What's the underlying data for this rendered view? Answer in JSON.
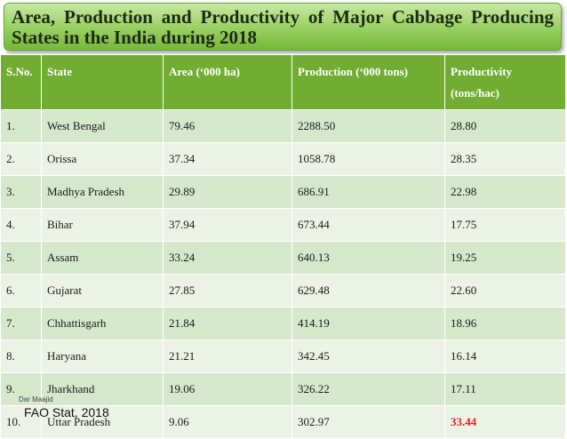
{
  "title": "Area, Production and Productivity of Major Cabbage Producing States in the India during 2018",
  "table": {
    "headers": {
      "sno": "S.No.",
      "state": "State",
      "area": "Area (‘000 ha)",
      "production": "Production (‘000 tons)",
      "productivity_line1": "Productivity",
      "productivity_line2": "(tons/hac)"
    },
    "rows": [
      {
        "sno": "1.",
        "state": "West Bengal",
        "area": "79.46",
        "production": "2288.50",
        "productivity": "28.80"
      },
      {
        "sno": "2.",
        "state": "Orissa",
        "area": "37.34",
        "production": "1058.78",
        "productivity": "28.35"
      },
      {
        "sno": "3.",
        "state": "Madhya Pradesh",
        "area": "29.89",
        "production": "686.91",
        "productivity": "22.98"
      },
      {
        "sno": "4.",
        "state": "Bihar",
        "area": "37.94",
        "production": "673.44",
        "productivity": "17.75"
      },
      {
        "sno": "5.",
        "state": "Assam",
        "area": "33.24",
        "production": "640.13",
        "productivity": "19.25"
      },
      {
        "sno": "6.",
        "state": "Gujarat",
        "area": "27.85",
        "production": "629.48",
        "productivity": "22.60"
      },
      {
        "sno": "7.",
        "state": "Chhattisgarh",
        "area": "21.84",
        "production": "414.19",
        "productivity": "18.96"
      },
      {
        "sno": "8.",
        "state": "Haryana",
        "area": "21.21",
        "production": "342.45",
        "productivity": "16.14"
      },
      {
        "sno": "9.",
        "state": "Jharkhand",
        "area": "19.06",
        "production": "326.22",
        "productivity": "17.11"
      },
      {
        "sno": "10.",
        "state": "Uttar Pradesh",
        "area": "9.06",
        "production": "302.97",
        "productivity": "33.44"
      }
    ]
  },
  "author": "Dar Maajid",
  "source": "FAO Stat, 2018",
  "colors": {
    "header_green": "#70ad32",
    "row_dark": "#d6e8cc",
    "row_light": "#ebf3e6",
    "highlight_red": "#e0201b"
  }
}
